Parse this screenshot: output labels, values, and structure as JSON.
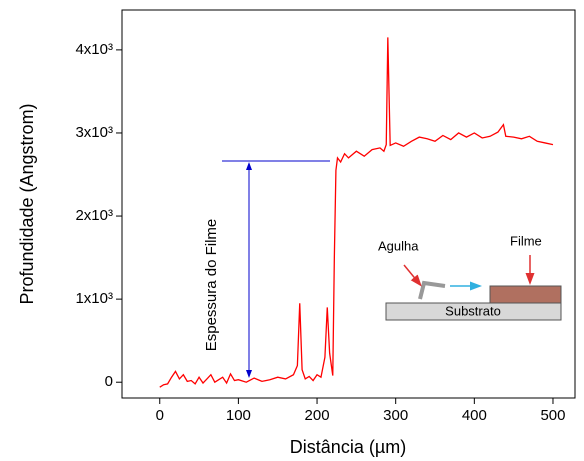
{
  "chart_data": {
    "type": "line",
    "xlabel": "Distância (µm)",
    "ylabel": "Profundidade (Angstrom)",
    "x": [
      0,
      5,
      10,
      15,
      20,
      25,
      30,
      35,
      40,
      45,
      50,
      55,
      60,
      65,
      70,
      75,
      80,
      85,
      90,
      95,
      100,
      110,
      120,
      130,
      140,
      150,
      160,
      170,
      175,
      178,
      181,
      185,
      190,
      195,
      200,
      205,
      210,
      213,
      216,
      220,
      222,
      224,
      226,
      230,
      235,
      240,
      250,
      260,
      270,
      280,
      285,
      288,
      290,
      293,
      300,
      310,
      320,
      330,
      340,
      350,
      360,
      370,
      380,
      390,
      400,
      410,
      420,
      430,
      437,
      440,
      450,
      460,
      470,
      480,
      490,
      500
    ],
    "values": [
      -60,
      -30,
      -20,
      60,
      130,
      40,
      90,
      10,
      20,
      -20,
      60,
      -10,
      40,
      90,
      0,
      30,
      60,
      -10,
      100,
      20,
      30,
      0,
      50,
      10,
      30,
      60,
      40,
      90,
      200,
      950,
      150,
      40,
      70,
      20,
      90,
      60,
      300,
      900,
      350,
      80,
      1500,
      2550,
      2700,
      2650,
      2750,
      2700,
      2780,
      2720,
      2800,
      2820,
      2780,
      2860,
      4150,
      2850,
      2880,
      2840,
      2900,
      2950,
      2930,
      2900,
      2970,
      2920,
      3000,
      2950,
      3000,
      2940,
      2960,
      3010,
      3100,
      2960,
      2950,
      2930,
      2960,
      2900,
      2880,
      2860
    ],
    "color": "#ff0000",
    "xlim": [
      -48,
      528
    ],
    "xticks": [
      0,
      100,
      200,
      300,
      400,
      500
    ],
    "ylim": [
      -190,
      4480
    ],
    "yticks": [
      0,
      {
        "value": 1000,
        "label": "1x10³"
      },
      {
        "value": 2000,
        "label": "2x10³"
      },
      {
        "value": 3000,
        "label": "3x10³"
      },
      {
        "value": 4000,
        "label": "4x10³"
      }
    ],
    "annotations": {
      "thickness": "Espessura do Filme",
      "needle": "Agulha",
      "film": "Filme",
      "substrate": "Substrato"
    }
  }
}
